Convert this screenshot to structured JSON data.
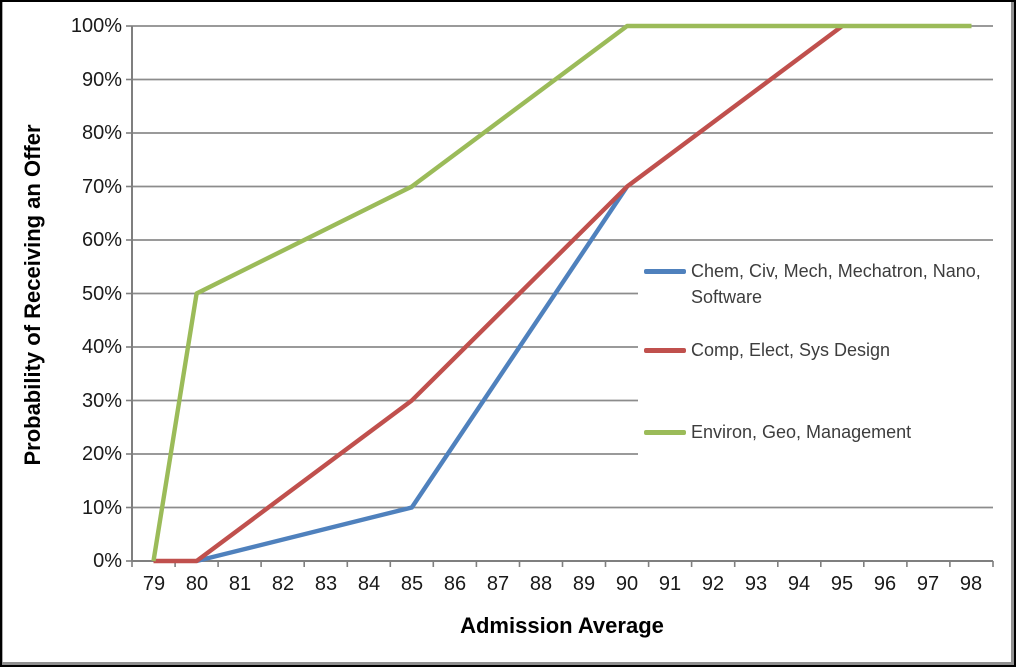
{
  "window": {
    "background": "#ffffff",
    "border_color": "#000000"
  },
  "chart_data": {
    "type": "line",
    "title": "",
    "xlabel": "Admission Average",
    "ylabel": "Probability of Receiving an Offer",
    "x_categories": [
      79,
      80,
      81,
      82,
      83,
      84,
      85,
      86,
      87,
      88,
      89,
      90,
      91,
      92,
      93,
      94,
      95,
      96,
      97,
      98
    ],
    "y_tick_labels": [
      "0%",
      "10%",
      "20%",
      "30%",
      "40%",
      "50%",
      "60%",
      "70%",
      "80%",
      "90%",
      "100%"
    ],
    "ylim": [
      0,
      100
    ],
    "y_tick_step": 10,
    "grid": true,
    "legend_position": "right-overlay",
    "series": [
      {
        "name": "Chem, Civ, Mech, Mechatron, Nano, Software",
        "color": "#4F81BD",
        "points": [
          [
            80,
            0
          ],
          [
            85,
            10
          ],
          [
            90,
            70
          ]
        ]
      },
      {
        "name": "Comp, Elect, Sys Design",
        "color": "#C0504D",
        "points": [
          [
            79,
            0
          ],
          [
            80,
            0
          ],
          [
            85,
            30
          ],
          [
            90,
            70
          ],
          [
            95,
            100
          ]
        ]
      },
      {
        "name": "Environ, Geo, Management",
        "color": "#9BBB59",
        "points": [
          [
            79,
            0
          ],
          [
            80,
            50
          ],
          [
            85,
            70
          ],
          [
            90,
            100
          ],
          [
            98,
            100
          ]
        ]
      }
    ],
    "colors": {
      "gridline": "#8c8c8c",
      "axis": "#7f7f7f",
      "tick_text": "#1a1a1a",
      "legend_text": "#3d3d3d",
      "title_text": "#000000"
    }
  }
}
